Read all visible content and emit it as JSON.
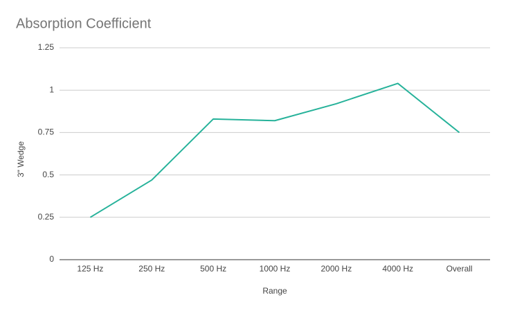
{
  "chart_data": {
    "type": "line",
    "title": "Absorption Coefficient",
    "x_label": "Range",
    "y_label": "3\" Wedge",
    "categories": [
      "125 Hz",
      "250 Hz",
      "500 Hz",
      "1000 Hz",
      "2000 Hz",
      "4000 Hz",
      "Overall"
    ],
    "values": [
      0.25,
      0.47,
      0.83,
      0.82,
      0.92,
      1.04,
      0.75
    ],
    "color": "#26b29a",
    "ylim": [
      0,
      1.25
    ],
    "yticks": [
      0,
      0.25,
      0.5,
      0.75,
      1,
      1.25
    ],
    "grid": true
  }
}
